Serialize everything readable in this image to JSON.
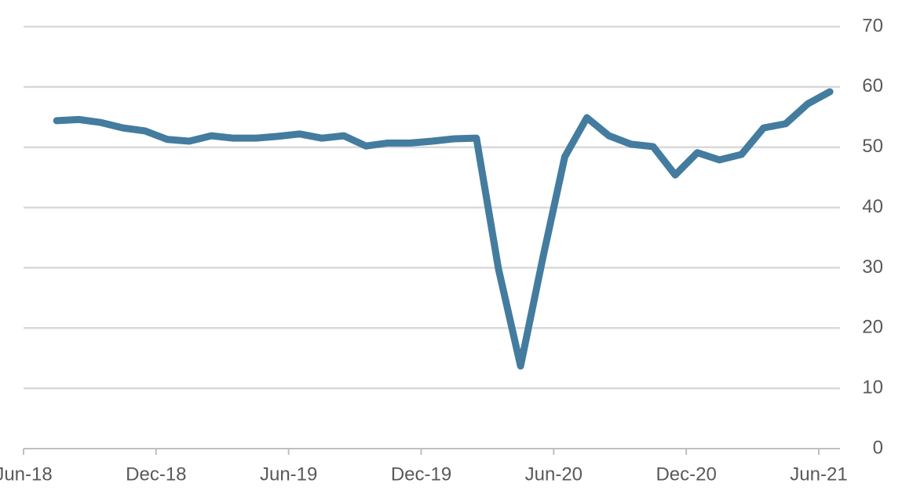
{
  "chart_data": {
    "type": "line",
    "x": [
      "2018-07",
      "2018-08",
      "2018-09",
      "2018-10",
      "2018-11",
      "2018-12",
      "2019-01",
      "2019-02",
      "2019-03",
      "2019-04",
      "2019-05",
      "2019-06",
      "2019-07",
      "2019-08",
      "2019-09",
      "2019-10",
      "2019-11",
      "2019-12",
      "2020-01",
      "2020-02",
      "2020-03",
      "2020-04",
      "2020-05",
      "2020-06",
      "2020-07",
      "2020-08",
      "2020-09",
      "2020-10",
      "2020-11",
      "2020-12",
      "2021-01",
      "2021-02",
      "2021-03",
      "2021-04",
      "2021-05",
      "2021-06"
    ],
    "series": [
      {
        "color": "#437c9f",
        "values": [
          54.4,
          54.6,
          54.1,
          53.2,
          52.7,
          51.3,
          51.0,
          51.9,
          51.5,
          51.5,
          51.8,
          52.2,
          51.5,
          51.9,
          50.2,
          50.7,
          50.7,
          51.0,
          51.4,
          51.5,
          29.8,
          13.7,
          31.5,
          48.4,
          54.9,
          51.9,
          50.5,
          50.1,
          45.4,
          49.1,
          47.9,
          48.8,
          53.2,
          53.9,
          57.2,
          59.2
        ]
      }
    ],
    "xticks": [
      {
        "value": "2018-06",
        "label": "Jun-18"
      },
      {
        "value": "2018-12",
        "label": "Dec-18"
      },
      {
        "value": "2019-06",
        "label": "Jun-19"
      },
      {
        "value": "2019-12",
        "label": "Dec-19"
      },
      {
        "value": "2020-06",
        "label": "Jun-20"
      },
      {
        "value": "2020-12",
        "label": "Dec-20"
      },
      {
        "value": "2021-06",
        "label": "Jun-21"
      }
    ],
    "ylim": [
      0,
      70
    ],
    "yticks": [
      0,
      10,
      20,
      30,
      40,
      50,
      60,
      70
    ],
    "grid": true
  }
}
